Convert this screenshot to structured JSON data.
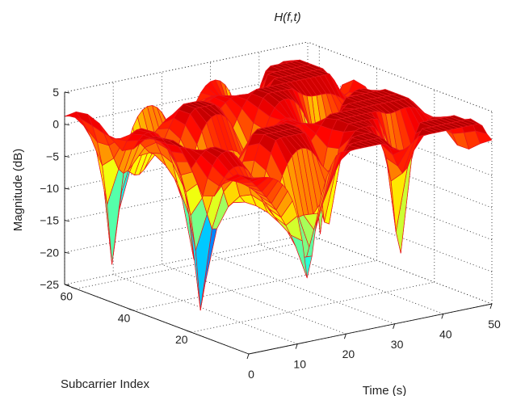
{
  "chart_data": {
    "type": "surface",
    "title": "H(f,t)",
    "xlabel": "Time (s)",
    "ylabel": "Subcarrier Index",
    "zlabel": "Magnitude (dB)",
    "xlim": [
      0,
      50
    ],
    "ylim": [
      0,
      64
    ],
    "zlim": [
      -25,
      5
    ],
    "x_ticks": [
      0,
      10,
      20,
      30,
      40,
      50
    ],
    "y_ticks": [
      20,
      40,
      60
    ],
    "z_ticks": [
      5,
      0,
      -5,
      -10,
      -15,
      -20,
      -25
    ],
    "z_tick_labels": [
      "5",
      "0",
      "−5",
      "−10",
      "−15",
      "−20",
      "−25"
    ],
    "grid": true,
    "colormap": "jet",
    "edge_color": "#e8141b",
    "grid_steps": {
      "time": 50,
      "subcarrier": 16
    },
    "surface_model": "random frequency-selective channel magnitude, roughly -7 to 3 dB with deep fades to -25 dB"
  }
}
